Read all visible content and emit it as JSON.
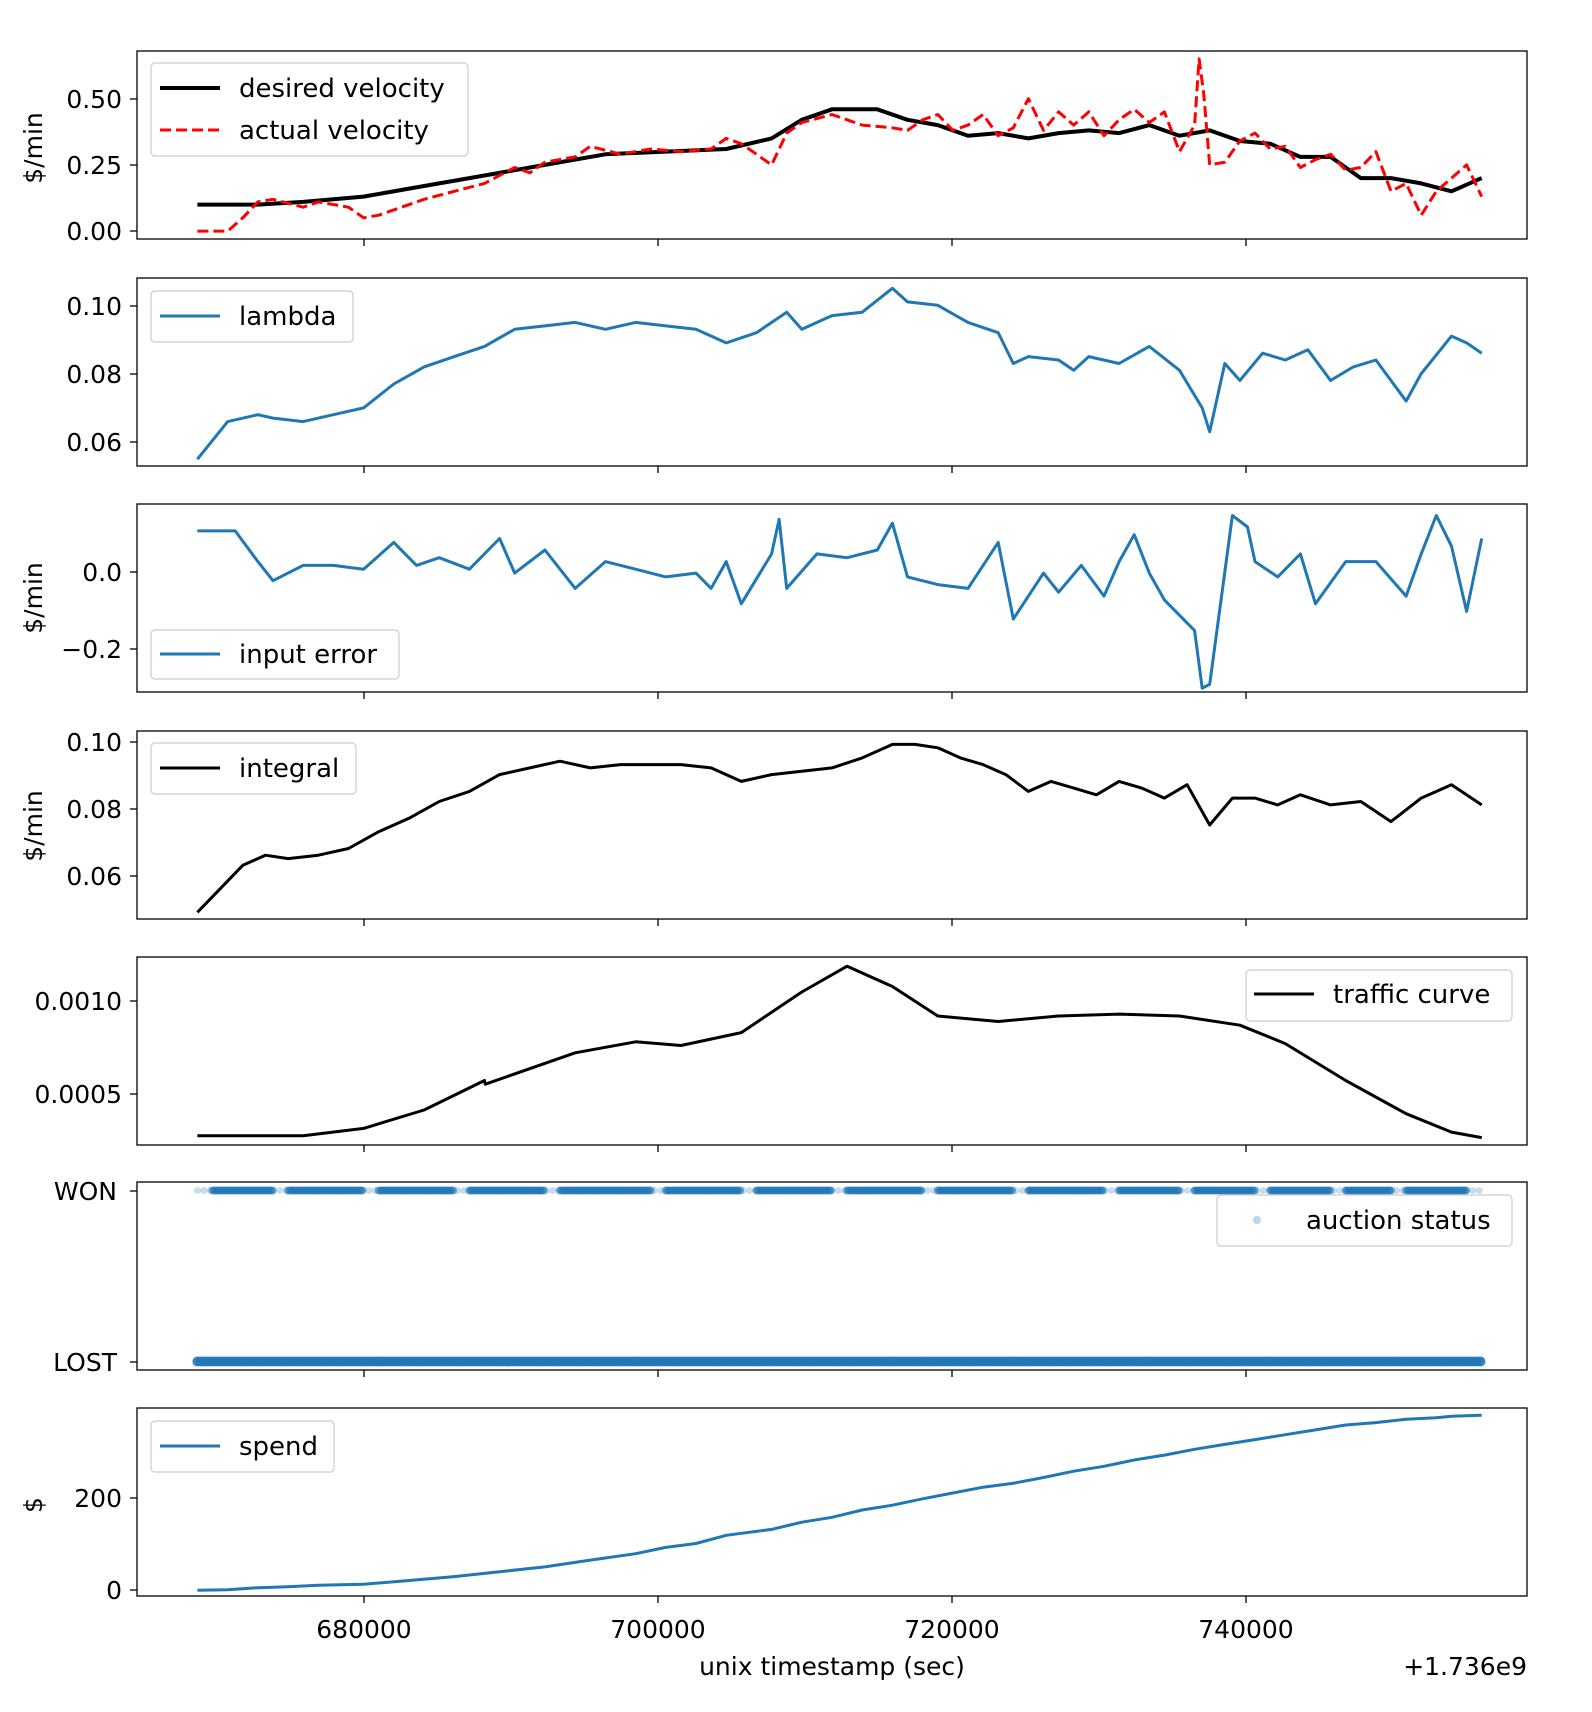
{
  "chart_data": [
    {
      "type": "line",
      "id": "velocity",
      "ylabel": "$/min",
      "xlim": [
        665000,
        757000
      ],
      "ylim": [
        -0.03,
        0.68
      ],
      "yticks": [
        0.0,
        0.25,
        0.5
      ],
      "ytick_labels": [
        "0.00",
        "0.25",
        "0.50"
      ],
      "legend_loc": "upper-left",
      "series": [
        {
          "name": "desired velocity",
          "color": "#000000",
          "style": "solid",
          "width": 4,
          "x": [
            669000,
            673000,
            676000,
            680000,
            684000,
            688000,
            692000,
            696000,
            700000,
            704000,
            707000,
            709000,
            711000,
            714000,
            716000,
            718000,
            720000,
            722000,
            724000,
            726000,
            728000,
            730000,
            732000,
            734000,
            736000,
            738000,
            740000,
            742000,
            744000,
            746000,
            748000,
            750000,
            752000,
            754000
          ],
          "y": [
            0.1,
            0.1,
            0.11,
            0.13,
            0.17,
            0.21,
            0.25,
            0.29,
            0.3,
            0.31,
            0.35,
            0.42,
            0.46,
            0.46,
            0.42,
            0.4,
            0.36,
            0.37,
            0.35,
            0.37,
            0.38,
            0.37,
            0.4,
            0.36,
            0.38,
            0.34,
            0.33,
            0.28,
            0.28,
            0.2,
            0.2,
            0.18,
            0.15,
            0.2
          ]
        },
        {
          "name": "actual velocity",
          "color": "#ff0000",
          "style": "dashed",
          "width": 3,
          "x": [
            669000,
            671000,
            672000,
            673000,
            674000,
            676000,
            677000,
            679000,
            680000,
            681000,
            683000,
            684000,
            686000,
            688000,
            690000,
            691000,
            692000,
            694000,
            695000,
            697000,
            699000,
            701000,
            703000,
            704000,
            705000,
            706000,
            707000,
            708000,
            709000,
            711000,
            712000,
            713000,
            715000,
            716000,
            717000,
            718000,
            719000,
            720000,
            721000,
            722000,
            723000,
            724000,
            725000,
            726000,
            727000,
            728000,
            729000,
            730000,
            731000,
            732000,
            733000,
            734000,
            735000,
            735300,
            735600,
            736000,
            737000,
            738000,
            739000,
            740000,
            741000,
            742000,
            743000,
            744000,
            745000,
            746000,
            747000,
            748000,
            749000,
            750000,
            751000,
            752000,
            753000,
            754000
          ],
          "y": [
            0.0,
            0.0,
            0.05,
            0.11,
            0.12,
            0.09,
            0.11,
            0.09,
            0.05,
            0.06,
            0.1,
            0.12,
            0.15,
            0.18,
            0.24,
            0.22,
            0.26,
            0.28,
            0.32,
            0.29,
            0.31,
            0.3,
            0.31,
            0.35,
            0.33,
            0.29,
            0.25,
            0.37,
            0.41,
            0.44,
            0.42,
            0.4,
            0.39,
            0.38,
            0.42,
            0.44,
            0.38,
            0.4,
            0.44,
            0.36,
            0.39,
            0.5,
            0.38,
            0.45,
            0.4,
            0.45,
            0.36,
            0.42,
            0.46,
            0.41,
            0.45,
            0.3,
            0.4,
            0.65,
            0.52,
            0.25,
            0.26,
            0.34,
            0.37,
            0.31,
            0.32,
            0.24,
            0.27,
            0.29,
            0.23,
            0.24,
            0.3,
            0.15,
            0.18,
            0.06,
            0.15,
            0.2,
            0.25,
            0.13
          ]
        }
      ]
    },
    {
      "type": "line",
      "id": "lambda",
      "ylabel": "",
      "xlim": [
        665000,
        757000
      ],
      "ylim": [
        0.053,
        0.108
      ],
      "yticks": [
        0.06,
        0.08,
        0.1
      ],
      "ytick_labels": [
        "0.06",
        "0.08",
        "0.10"
      ],
      "legend_loc": "upper-left",
      "series": [
        {
          "name": "lambda",
          "color": "#1f77b4",
          "style": "solid",
          "width": 3,
          "x": [
            669000,
            671000,
            673000,
            674000,
            676000,
            678000,
            680000,
            682000,
            684000,
            686000,
            688000,
            690000,
            692000,
            694000,
            696000,
            698000,
            700000,
            702000,
            704000,
            706000,
            708000,
            709000,
            711000,
            713000,
            715000,
            716000,
            718000,
            720000,
            722000,
            723000,
            724000,
            726000,
            727000,
            728000,
            730000,
            732000,
            734000,
            735500,
            736000,
            737000,
            738000,
            739500,
            741000,
            742500,
            744000,
            745500,
            747000,
            749000,
            750000,
            752000,
            753000,
            754000
          ],
          "y": [
            0.055,
            0.066,
            0.068,
            0.067,
            0.066,
            0.068,
            0.07,
            0.077,
            0.082,
            0.085,
            0.088,
            0.093,
            0.094,
            0.095,
            0.093,
            0.095,
            0.094,
            0.093,
            0.089,
            0.092,
            0.098,
            0.093,
            0.097,
            0.098,
            0.105,
            0.101,
            0.1,
            0.095,
            0.092,
            0.083,
            0.085,
            0.084,
            0.081,
            0.085,
            0.083,
            0.088,
            0.081,
            0.07,
            0.063,
            0.083,
            0.078,
            0.086,
            0.084,
            0.087,
            0.078,
            0.082,
            0.084,
            0.072,
            0.08,
            0.091,
            0.089,
            0.086
          ]
        }
      ]
    },
    {
      "type": "line",
      "id": "input-error",
      "ylabel": "$/min",
      "xlim": [
        665000,
        757000
      ],
      "ylim": [
        -0.31,
        0.18
      ],
      "yticks": [
        -0.2,
        0.0
      ],
      "ytick_labels": [
        "−0.2",
        "0.0"
      ],
      "legend_loc": "lower-left",
      "series": [
        {
          "name": "input error",
          "color": "#1f77b4",
          "style": "solid",
          "width": 3,
          "x": [
            669000,
            671500,
            673000,
            674000,
            676000,
            678000,
            680000,
            682000,
            683500,
            685000,
            687000,
            689000,
            690000,
            692000,
            694000,
            696000,
            698000,
            700000,
            702000,
            703000,
            704000,
            705000,
            707000,
            707500,
            708000,
            710000,
            712000,
            714000,
            715000,
            716000,
            718000,
            720000,
            722000,
            723000,
            725000,
            726000,
            727500,
            729000,
            730000,
            731000,
            732000,
            733000,
            735000,
            735500,
            736000,
            737500,
            738500,
            739000,
            740500,
            742000,
            743000,
            745000,
            747000,
            749000,
            750000,
            751000,
            752000,
            753000,
            754000
          ],
          "y": [
            0.11,
            0.11,
            0.03,
            -0.02,
            0.02,
            0.02,
            0.01,
            0.08,
            0.02,
            0.04,
            0.01,
            0.09,
            0.0,
            0.06,
            -0.04,
            0.03,
            0.01,
            -0.01,
            0.0,
            -0.04,
            0.03,
            -0.08,
            0.05,
            0.14,
            -0.04,
            0.05,
            0.04,
            0.06,
            0.13,
            -0.01,
            -0.03,
            -0.04,
            0.08,
            -0.12,
            0.0,
            -0.05,
            0.02,
            -0.06,
            0.03,
            0.1,
            0.0,
            -0.07,
            -0.15,
            -0.3,
            -0.29,
            0.15,
            0.12,
            0.03,
            -0.01,
            0.05,
            -0.08,
            0.03,
            0.03,
            -0.06,
            0.05,
            0.15,
            0.07,
            -0.1,
            0.09
          ]
        }
      ]
    },
    {
      "type": "line",
      "id": "integral",
      "ylabel": "$/min",
      "xlim": [
        665000,
        757000
      ],
      "ylim": [
        0.048,
        0.104
      ],
      "yticks": [
        0.06,
        0.08,
        0.1
      ],
      "ytick_labels": [
        "0.06",
        "0.08",
        "0.10"
      ],
      "legend_loc": "upper-left",
      "series": [
        {
          "name": "integral",
          "color": "#000000",
          "style": "solid",
          "width": 3,
          "x": [
            669000,
            670500,
            672000,
            673500,
            675000,
            677000,
            679000,
            681000,
            683000,
            685000,
            687000,
            689000,
            691000,
            693000,
            695000,
            697000,
            699000,
            701000,
            703000,
            705000,
            707000,
            709000,
            711000,
            713000,
            715000,
            716500,
            718000,
            719500,
            721000,
            722500,
            724000,
            725500,
            727000,
            728500,
            730000,
            731500,
            733000,
            734500,
            736000,
            737500,
            739000,
            740500,
            742000,
            744000,
            746000,
            748000,
            750000,
            752000,
            754000
          ],
          "y": [
            0.05,
            0.057,
            0.064,
            0.067,
            0.066,
            0.067,
            0.069,
            0.074,
            0.078,
            0.083,
            0.086,
            0.091,
            0.093,
            0.095,
            0.093,
            0.094,
            0.094,
            0.094,
            0.093,
            0.089,
            0.091,
            0.092,
            0.093,
            0.096,
            0.1,
            0.1,
            0.099,
            0.096,
            0.094,
            0.091,
            0.086,
            0.089,
            0.087,
            0.085,
            0.089,
            0.087,
            0.084,
            0.088,
            0.076,
            0.084,
            0.084,
            0.082,
            0.085,
            0.082,
            0.083,
            0.077,
            0.084,
            0.088,
            0.082
          ]
        }
      ]
    },
    {
      "type": "line",
      "id": "traffic",
      "ylabel": "",
      "xlim": [
        665000,
        757000
      ],
      "ylim": [
        0.00023,
        0.00125
      ],
      "yticks": [
        0.0005,
        0.001
      ],
      "ytick_labels": [
        "0.0005",
        "0.0010"
      ],
      "legend_loc": "upper-right",
      "series": [
        {
          "name": "traffic curve",
          "color": "#000000",
          "style": "solid",
          "width": 3,
          "x": [
            669000,
            672000,
            676000,
            680000,
            684000,
            688000,
            688050,
            694000,
            698000,
            701000,
            705000,
            709000,
            712000,
            715000,
            718000,
            722000,
            726000,
            730000,
            734000,
            738000,
            741000,
            745000,
            749000,
            752000,
            754000
          ],
          "y": [
            0.00028,
            0.00028,
            0.00028,
            0.00032,
            0.00042,
            0.00058,
            0.00056,
            0.00073,
            0.00079,
            0.00077,
            0.00084,
            0.00106,
            0.0012,
            0.00109,
            0.00093,
            0.0009,
            0.00093,
            0.00094,
            0.00093,
            0.00088,
            0.00078,
            0.00058,
            0.0004,
            0.0003,
            0.00027
          ]
        }
      ]
    },
    {
      "type": "scatter",
      "id": "auction",
      "ylabel": "",
      "xlim": [
        665000,
        757000
      ],
      "ylim": [
        -0.05,
        1.05
      ],
      "yticks": [
        0,
        1
      ],
      "ytick_labels": [
        "LOST",
        "WON"
      ],
      "legend_loc": "upper-right",
      "series": [
        {
          "name": "auction status",
          "color": "#1f77b4",
          "marker": "circle",
          "alpha": 0.25,
          "lost_range": [
            669000,
            754000
          ],
          "won_clusters": [
            [
              670000,
              674000
            ],
            [
              675000,
              680000
            ],
            [
              681000,
              686000
            ],
            [
              687000,
              692000
            ],
            [
              693000,
              699000
            ],
            [
              700000,
              705000
            ],
            [
              706000,
              711000
            ],
            [
              712000,
              717000
            ],
            [
              718000,
              723000
            ],
            [
              724000,
              729000
            ],
            [
              730000,
              734000
            ],
            [
              735000,
              739000
            ],
            [
              740000,
              744000
            ],
            [
              745000,
              748000
            ],
            [
              749000,
              753000
            ]
          ],
          "won_range": [
            669000,
            754000
          ]
        }
      ]
    },
    {
      "type": "line",
      "id": "spend",
      "ylabel": "$",
      "xlim": [
        665000,
        757000
      ],
      "ylim": [
        -12,
        375
      ],
      "yticks": [
        0,
        200
      ],
      "ytick_labels": [
        "0",
        "200"
      ],
      "legend_loc": "upper-left",
      "xticks": [
        680000,
        700000,
        720000,
        740000
      ],
      "xtick_labels": [
        "680000",
        "700000",
        "720000",
        "740000"
      ],
      "xlabel": "unix timestamp (sec)",
      "x_offset_text": "+1.736e9",
      "series": [
        {
          "name": "spend",
          "color": "#1f77b4",
          "style": "solid",
          "width": 3,
          "x": [
            669000,
            671000,
            673000,
            675000,
            677000,
            680000,
            683000,
            686000,
            689000,
            692000,
            695000,
            698000,
            700000,
            702000,
            704000,
            707000,
            709000,
            711000,
            713000,
            715000,
            717000,
            719000,
            721000,
            723000,
            725000,
            727000,
            729000,
            731000,
            733000,
            735000,
            737000,
            739000,
            741000,
            743000,
            745000,
            747000,
            749000,
            751000,
            752000,
            754000
          ],
          "y": [
            0,
            1,
            5,
            7,
            10,
            12,
            20,
            28,
            38,
            48,
            62,
            75,
            88,
            96,
            113,
            125,
            140,
            150,
            165,
            175,
            188,
            200,
            212,
            220,
            232,
            245,
            255,
            268,
            278,
            290,
            300,
            310,
            320,
            330,
            340,
            345,
            352,
            355,
            358,
            360
          ]
        }
      ]
    }
  ]
}
